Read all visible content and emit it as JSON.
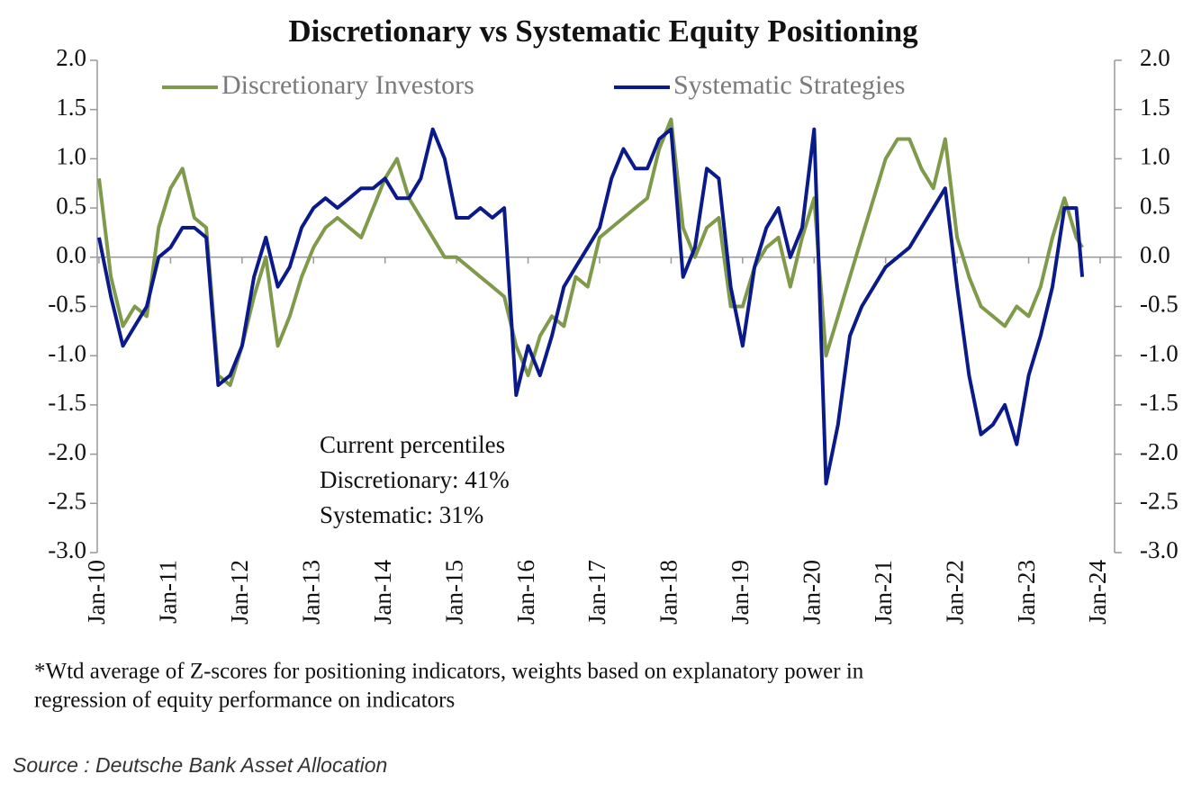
{
  "chart_data": {
    "type": "line",
    "title": "Discretionary  vs Systematic Equity Positioning",
    "x": [
      "Jan-10",
      "Mar-10",
      "May-10",
      "Jul-10",
      "Sep-10",
      "Nov-10",
      "Jan-11",
      "Mar-11",
      "May-11",
      "Jul-11",
      "Sep-11",
      "Nov-11",
      "Jan-12",
      "Mar-12",
      "May-12",
      "Jul-12",
      "Sep-12",
      "Nov-12",
      "Jan-13",
      "Mar-13",
      "May-13",
      "Jul-13",
      "Sep-13",
      "Nov-13",
      "Jan-14",
      "Mar-14",
      "May-14",
      "Jul-14",
      "Sep-14",
      "Nov-14",
      "Jan-15",
      "Mar-15",
      "May-15",
      "Jul-15",
      "Sep-15",
      "Nov-15",
      "Jan-16",
      "Mar-16",
      "May-16",
      "Jul-16",
      "Sep-16",
      "Nov-16",
      "Jan-17",
      "Mar-17",
      "May-17",
      "Jul-17",
      "Sep-17",
      "Nov-17",
      "Jan-18",
      "Mar-18",
      "May-18",
      "Jul-18",
      "Sep-18",
      "Nov-18",
      "Jan-19",
      "Mar-19",
      "May-19",
      "Jul-19",
      "Sep-19",
      "Nov-19",
      "Jan-20",
      "Mar-20",
      "May-20",
      "Jul-20",
      "Sep-20",
      "Nov-20",
      "Jan-21",
      "Mar-21",
      "May-21",
      "Jul-21",
      "Sep-21",
      "Nov-21",
      "Jan-22",
      "Mar-22",
      "May-22",
      "Jul-22",
      "Sep-22",
      "Nov-22",
      "Jan-23",
      "Mar-23",
      "May-23",
      "Jul-23",
      "Sep-23",
      "Oct-23"
    ],
    "series": [
      {
        "name": "Discretionary Investors",
        "color": "#7f9a4a",
        "values": [
          0.8,
          -0.2,
          -0.7,
          -0.5,
          -0.6,
          0.3,
          0.7,
          0.9,
          0.4,
          0.3,
          -1.2,
          -1.3,
          -0.9,
          -0.4,
          0.0,
          -0.9,
          -0.6,
          -0.2,
          0.1,
          0.3,
          0.4,
          0.3,
          0.2,
          0.5,
          0.8,
          1.0,
          0.6,
          0.4,
          0.2,
          0.0,
          0.0,
          -0.1,
          -0.2,
          -0.3,
          -0.4,
          -0.9,
          -1.2,
          -0.8,
          -0.6,
          -0.7,
          -0.2,
          -0.3,
          0.2,
          0.3,
          0.4,
          0.5,
          0.6,
          1.1,
          1.4,
          0.3,
          0.0,
          0.3,
          0.4,
          -0.5,
          -0.5,
          -0.1,
          0.1,
          0.2,
          -0.3,
          0.2,
          0.6,
          -1.0,
          -0.6,
          -0.2,
          0.2,
          0.6,
          1.0,
          1.2,
          1.2,
          0.9,
          0.7,
          1.2,
          0.2,
          -0.2,
          -0.5,
          -0.6,
          -0.7,
          -0.5,
          -0.6,
          -0.3,
          0.2,
          0.6,
          0.2,
          0.1
        ]
      },
      {
        "name": "Systematic Strategies",
        "color": "#0b1a8a",
        "values": [
          0.2,
          -0.4,
          -0.9,
          -0.7,
          -0.5,
          0.0,
          0.1,
          0.3,
          0.3,
          0.2,
          -1.3,
          -1.2,
          -0.9,
          -0.2,
          0.2,
          -0.3,
          -0.1,
          0.3,
          0.5,
          0.6,
          0.5,
          0.6,
          0.7,
          0.7,
          0.8,
          0.6,
          0.6,
          0.8,
          1.3,
          1.0,
          0.4,
          0.4,
          0.5,
          0.4,
          0.5,
          -1.4,
          -0.9,
          -1.2,
          -0.8,
          -0.3,
          -0.1,
          0.1,
          0.3,
          0.8,
          1.1,
          0.9,
          0.9,
          1.2,
          1.3,
          -0.2,
          0.1,
          0.9,
          0.8,
          -0.3,
          -0.9,
          -0.1,
          0.3,
          0.5,
          0.0,
          0.3,
          1.3,
          -2.3,
          -1.7,
          -0.8,
          -0.5,
          -0.3,
          -0.1,
          0.0,
          0.1,
          0.3,
          0.5,
          0.7,
          -0.3,
          -1.2,
          -1.8,
          -1.7,
          -1.5,
          -1.9,
          -1.2,
          -0.8,
          -0.3,
          0.5,
          0.5,
          -0.2
        ]
      }
    ],
    "xlim": [
      "Jan-10",
      "Jan-24"
    ],
    "xticks": [
      "Jan-10",
      "Jan-11",
      "Jan-12",
      "Jan-13",
      "Jan-14",
      "Jan-15",
      "Jan-16",
      "Jan-17",
      "Jan-18",
      "Jan-19",
      "Jan-20",
      "Jan-21",
      "Jan-22",
      "Jan-23",
      "Jan-24"
    ],
    "ylim": [
      -3,
      2
    ],
    "yticks": [
      {
        "value": 2,
        "label": "2.0"
      },
      {
        "value": 1.5,
        "label": "1.5"
      },
      {
        "value": 1,
        "label": "1.0"
      },
      {
        "value": 0.5,
        "label": "0.5"
      },
      {
        "value": 0,
        "label": "0.0"
      },
      {
        "value": -0.5,
        "label": "-0.5"
      },
      {
        "value": -1,
        "label": "-1.0"
      },
      {
        "value": -1.5,
        "label": "-1.5"
      },
      {
        "value": -2,
        "label": "-2.0"
      },
      {
        "value": -2.5,
        "label": "-2.5"
      },
      {
        "value": -3,
        "label": "-3.0"
      }
    ],
    "y2lim": [
      -3,
      2
    ],
    "y2ticks": [
      {
        "value": 2,
        "label": "2.0"
      },
      {
        "value": 1.5,
        "label": "1.5"
      },
      {
        "value": 1,
        "label": "1.0"
      },
      {
        "value": 0.5,
        "label": "0.5"
      },
      {
        "value": 0,
        "label": "0.0"
      },
      {
        "value": -0.5,
        "label": "-0.5"
      },
      {
        "value": -1,
        "label": "-1.0"
      },
      {
        "value": -1.5,
        "label": "-1.5"
      },
      {
        "value": -2,
        "label": "-2.0"
      },
      {
        "value": -2.5,
        "label": "-2.5"
      },
      {
        "value": -3,
        "label": "-3.0"
      }
    ],
    "annotations": [
      "Current percentiles",
      "Discretionary: 41%",
      "Systematic: 31%"
    ],
    "footnote": [
      "*Wtd average of Z-scores for positioning indicators, weights based on explanatory power in",
      "regression of equity performance on indicators"
    ],
    "source": "Source : Deutsche Bank Asset Allocation"
  }
}
